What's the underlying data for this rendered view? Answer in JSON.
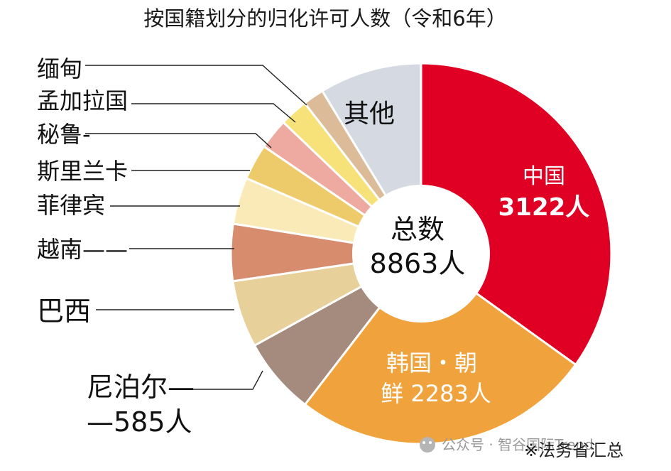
{
  "chart_data": {
    "type": "pie",
    "title": "按国籍划分的归化许可人数（令和6年）",
    "center_label": "总数",
    "total_label": "8863人",
    "slices": [
      {
        "name": "中国",
        "value": 3122,
        "value_label": "3122人",
        "color": "#e00024"
      },
      {
        "name": "韩国・朝鲜",
        "value": 2283,
        "value_label": "2283人",
        "color": "#f0a23c"
      },
      {
        "name": "尼泊尔",
        "value": 585,
        "value_label": "585人",
        "color": "#a58a7e"
      },
      {
        "name": "巴西",
        "value": 510,
        "color": "#e8d09a"
      },
      {
        "name": "越南",
        "value": 432,
        "color": "#d88c6e"
      },
      {
        "name": "菲律宾",
        "value": 355,
        "color": "#faeab8"
      },
      {
        "name": "斯里兰卡",
        "value": 272,
        "color": "#edcb6a"
      },
      {
        "name": "秘鲁",
        "value": 232,
        "color": "#eeaaa0"
      },
      {
        "name": "孟加拉国",
        "value": 215,
        "color": "#f7e27a"
      },
      {
        "name": "缅甸",
        "value": 160,
        "color": "#dcbc98"
      },
      {
        "name": "其他",
        "value": 777,
        "color": "#d4d9e2"
      }
    ],
    "label_lines": {
      "china_name": "中国",
      "china_value": "3122人",
      "korea_line1": "韩国・朝",
      "korea_line2": "鲜 2283人",
      "nepal_line1": "尼泊尔—",
      "nepal_line2": "—585人",
      "brazil": "巴西",
      "vietnam": "越南——",
      "philippines": "菲律宾",
      "srilanka_line1": "秘鲁-",
      "srilanka_line2": "斯里兰卡",
      "bangladesh": "孟加拉国",
      "myanmar": "缅甸",
      "other": "其他"
    }
  },
  "footer": {
    "watermark": "公众号 · 智谷国际Trend",
    "source": "※法务省汇总"
  }
}
